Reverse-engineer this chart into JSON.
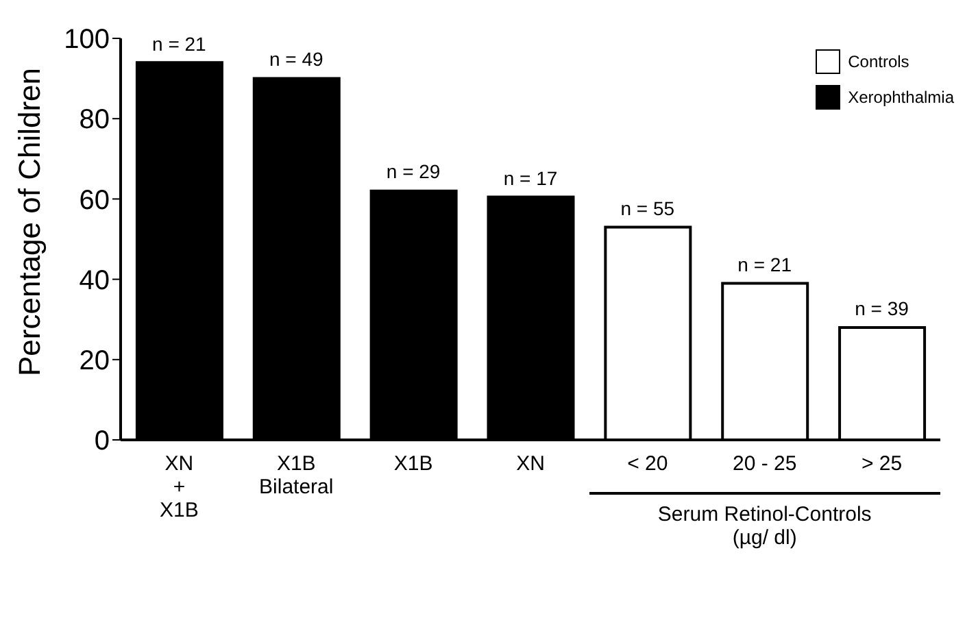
{
  "chart_data": {
    "type": "bar",
    "ylabel": "Percentage of Children",
    "categories": [
      "XN\n+\nX1B",
      "X1B\nBilateral",
      "X1B",
      "XN",
      "< 20",
      "20 - 25",
      "> 25"
    ],
    "series": [
      {
        "name": "Controls",
        "color": "#ffffff",
        "values": [
          null,
          null,
          null,
          null,
          53,
          39,
          28
        ]
      },
      {
        "name": "Xerophthalmia",
        "color": "#000000",
        "values": [
          94,
          90,
          62,
          60.5,
          null,
          null,
          null
        ]
      }
    ],
    "ylim": [
      0,
      100
    ],
    "yticks": [
      0,
      20,
      40,
      60,
      80,
      100
    ],
    "grid": false,
    "legend": "top right",
    "annotations": [
      {
        "text": "n = 21",
        "x": "XN\n+\nX1B",
        "y": 94
      },
      {
        "text": "n = 49",
        "x": "X1B\nBilateral",
        "y": 90
      },
      {
        "text": "n = 29",
        "x": "X1B",
        "y": 62
      },
      {
        "text": "n = 17",
        "x": "XN",
        "y": 60.5
      },
      {
        "text": "n = 55",
        "x": "< 20",
        "y": 53
      },
      {
        "text": "n = 21",
        "x": "20 - 25",
        "y": 39
      },
      {
        "text": "n = 39",
        "x": "> 25",
        "y": 28
      },
      "Serum Retinol-Controls\n(µg/ dl)"
    ]
  }
}
